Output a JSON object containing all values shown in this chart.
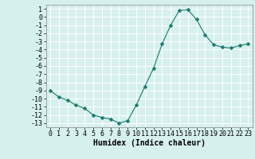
{
  "x": [
    0,
    1,
    2,
    3,
    4,
    5,
    6,
    7,
    8,
    9,
    10,
    11,
    12,
    13,
    14,
    15,
    16,
    17,
    18,
    19,
    20,
    21,
    22,
    23
  ],
  "y": [
    -9,
    -9.8,
    -10.2,
    -10.8,
    -11.2,
    -12.0,
    -12.3,
    -12.5,
    -13.0,
    -12.7,
    -10.8,
    -8.5,
    -6.3,
    -3.3,
    -1.0,
    0.8,
    0.9,
    -0.3,
    -2.2,
    -3.4,
    -3.7,
    -3.8,
    -3.5,
    -3.3
  ],
  "line_color": "#1a7a6e",
  "marker": "D",
  "marker_size": 2.5,
  "bg_color": "#d6f0ee",
  "grid_color": "#ffffff",
  "xlabel": "Humidex (Indice chaleur)",
  "xlim": [
    -0.5,
    23.5
  ],
  "ylim": [
    -13.5,
    1.5
  ],
  "yticks": [
    1,
    0,
    -1,
    -2,
    -3,
    -4,
    -5,
    -6,
    -7,
    -8,
    -9,
    -10,
    -11,
    -12,
    -13
  ],
  "xticks": [
    0,
    1,
    2,
    3,
    4,
    5,
    6,
    7,
    8,
    9,
    10,
    11,
    12,
    13,
    14,
    15,
    16,
    17,
    18,
    19,
    20,
    21,
    22,
    23
  ],
  "tick_font_size": 6,
  "label_font_size": 7
}
